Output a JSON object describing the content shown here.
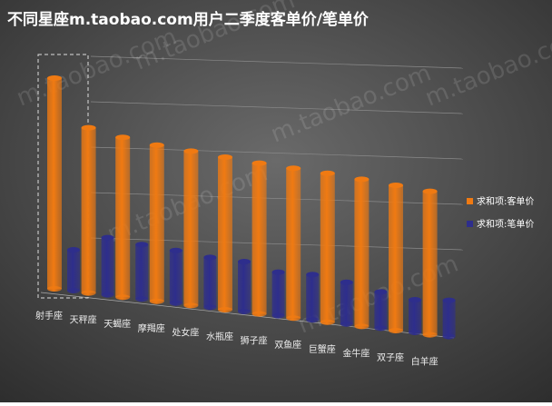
{
  "chart_data": {
    "type": "bar3d",
    "title": "不同星座m.taobao.com用户二季度客单价/笔单价",
    "watermark": "m.taobao.com",
    "categories": [
      "射手座",
      "天秤座",
      "天蝎座",
      "摩羯座",
      "处女座",
      "水瓶座",
      "狮子座",
      "双鱼座",
      "巨蟹座",
      "金牛座",
      "双子座",
      "白羊座"
    ],
    "series": [
      {
        "name": "求和项:客单价",
        "color": "#f07a12",
        "values": [
          232,
          182,
          176,
          172,
          170,
          168,
          166,
          165,
          164,
          162,
          160,
          158
        ]
      },
      {
        "name": "求和项:笔单价",
        "color": "#2e2e8c",
        "values": [
          45,
          63,
          60,
          58,
          55,
          55,
          48,
          50,
          46,
          40,
          36,
          40
        ]
      }
    ],
    "ylim": [
      0,
      250
    ],
    "legend": "right"
  }
}
